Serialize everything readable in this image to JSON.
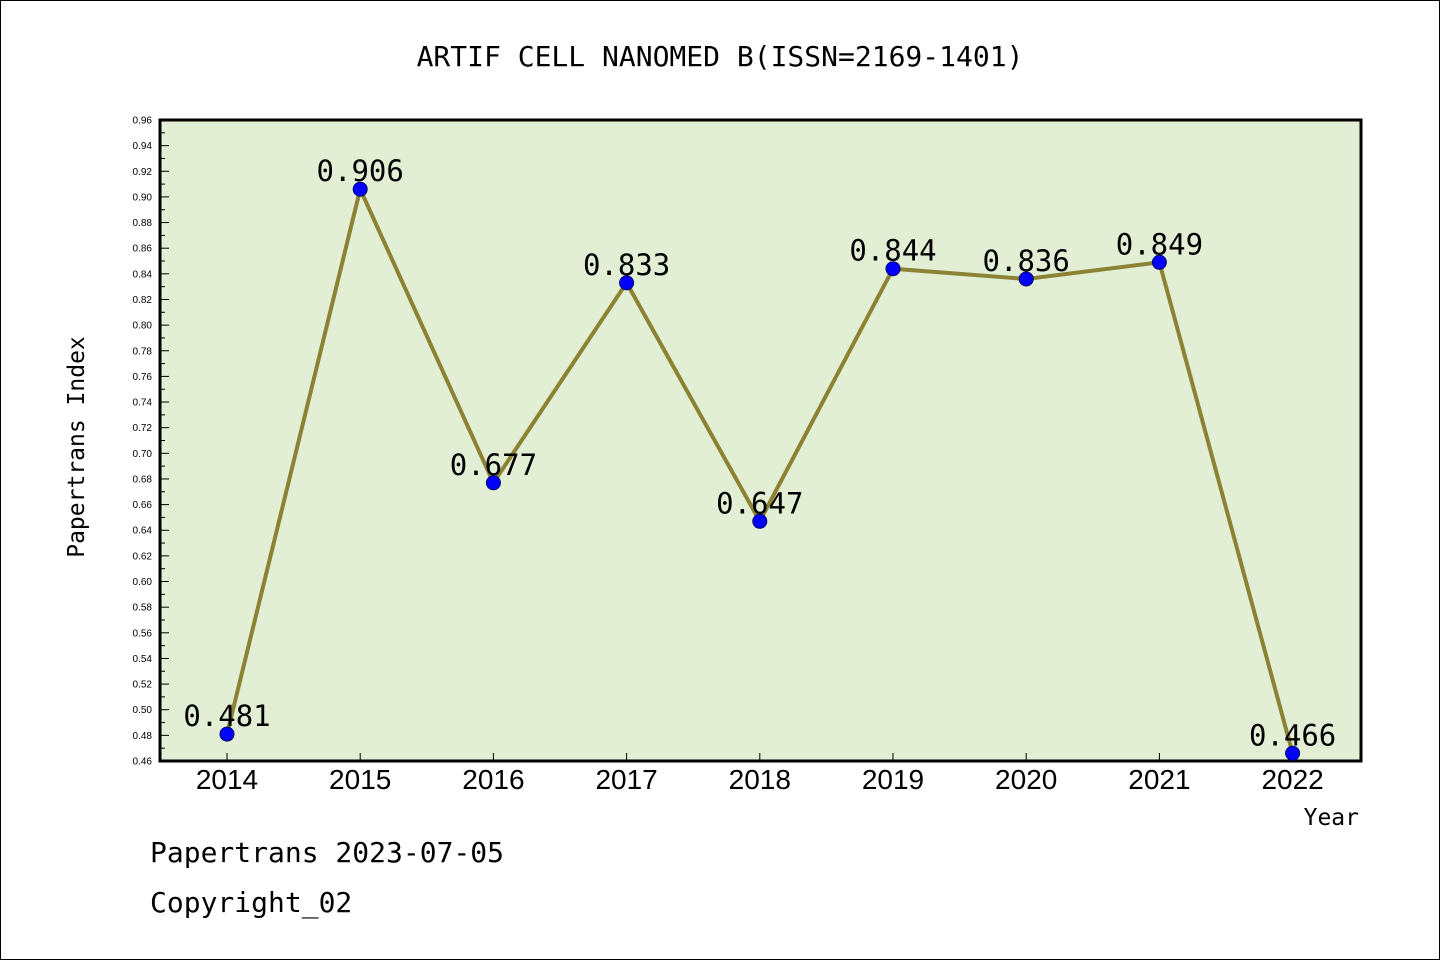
{
  "footer": {
    "line1": "Papertrans 2023-07-05",
    "line2": "Copyright_02"
  },
  "colors": {
    "plot_background": "#e2efd5",
    "line": "#8b8234",
    "marker": "#0000ff",
    "marker_edge": "#00006e"
  },
  "chart_data": {
    "type": "line",
    "title": "ARTIF CELL NANOMED B(ISSN=2169-1401)",
    "xlabel": "Year",
    "ylabel": "Papertrans Index",
    "categories": [
      "2014",
      "2015",
      "2016",
      "2017",
      "2018",
      "2019",
      "2020",
      "2021",
      "2022"
    ],
    "series": [
      {
        "values": [
          0.481,
          0.906,
          0.677,
          0.833,
          0.647,
          0.844,
          0.836,
          0.849,
          0.466
        ],
        "labels": [
          "0.481",
          "0.906",
          "0.677",
          "0.833",
          "0.647",
          "0.844",
          "0.836",
          "0.849",
          "0.466"
        ]
      }
    ],
    "ylim": [
      0.46,
      0.96
    ],
    "yticks": [
      "0.46",
      "0.48",
      "0.50",
      "0.52",
      "0.54",
      "0.56",
      "0.58",
      "0.60",
      "0.62",
      "0.64",
      "0.66",
      "0.68",
      "0.70",
      "0.72",
      "0.74",
      "0.76",
      "0.78",
      "0.80",
      "0.82",
      "0.84",
      "0.86",
      "0.88",
      "0.90",
      "0.92",
      "0.94",
      "0.96"
    ],
    "grid": false,
    "legend": "none"
  }
}
